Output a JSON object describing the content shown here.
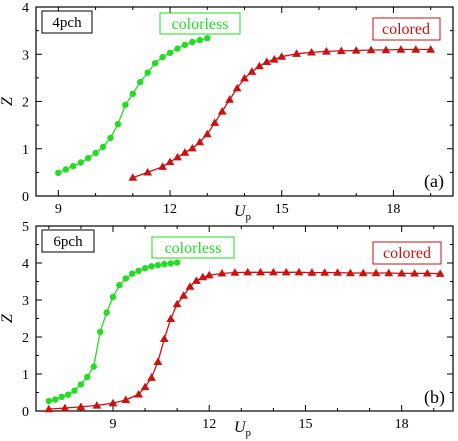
{
  "chart_data": [
    {
      "type": "line",
      "panel_tag": "(a)",
      "box_label": "4pch",
      "xlabel_main": "U",
      "xlabel_sub": "p",
      "ylabel": "Z",
      "xlim": [
        8.4,
        19.6
      ],
      "ylim": [
        0,
        4
      ],
      "xticks": [
        9,
        12,
        15,
        18
      ],
      "yticks": [
        0,
        1,
        2,
        3,
        4
      ],
      "grid": false,
      "series": [
        {
          "name": "colorless",
          "color": "#22dd22",
          "marker": "circle",
          "x": [
            9.0,
            9.2,
            9.4,
            9.6,
            9.8,
            10.0,
            10.2,
            10.4,
            10.6,
            10.8,
            11.0,
            11.2,
            11.4,
            11.6,
            11.8,
            12.0,
            12.2,
            12.4,
            12.6,
            12.8,
            13.0
          ],
          "y": [
            0.49,
            0.56,
            0.63,
            0.71,
            0.8,
            0.91,
            1.04,
            1.23,
            1.52,
            1.93,
            2.16,
            2.41,
            2.61,
            2.81,
            2.94,
            3.03,
            3.12,
            3.2,
            3.26,
            3.3,
            3.34
          ]
        },
        {
          "name": "colored",
          "color": "#cc1111",
          "marker": "triangle",
          "x": [
            11.0,
            11.4,
            11.8,
            12.0,
            12.2,
            12.4,
            12.6,
            12.8,
            13.0,
            13.2,
            13.4,
            13.6,
            13.8,
            14.0,
            14.2,
            14.4,
            14.6,
            14.8,
            15.0,
            15.4,
            15.8,
            16.2,
            16.6,
            17.0,
            17.4,
            17.8,
            18.2,
            18.6,
            19.0
          ],
          "y": [
            0.39,
            0.5,
            0.62,
            0.72,
            0.82,
            0.92,
            1.01,
            1.14,
            1.31,
            1.55,
            1.79,
            2.04,
            2.28,
            2.49,
            2.63,
            2.75,
            2.84,
            2.89,
            2.95,
            3.01,
            3.04,
            3.06,
            3.07,
            3.08,
            3.09,
            3.09,
            3.1,
            3.1,
            3.1
          ]
        }
      ]
    },
    {
      "type": "line",
      "panel_tag": "(b)",
      "box_label": "6pch",
      "xlabel_main": "U",
      "xlabel_sub": "p",
      "ylabel": "Z",
      "xlim": [
        6.6,
        19.6
      ],
      "ylim": [
        0,
        5
      ],
      "xticks": [
        9,
        12,
        15,
        18
      ],
      "yticks": [
        0,
        1,
        2,
        3,
        4,
        5
      ],
      "grid": false,
      "series": [
        {
          "name": "colorless",
          "color": "#22dd22",
          "marker": "circle",
          "x": [
            7.0,
            7.2,
            7.4,
            7.6,
            7.8,
            8.0,
            8.2,
            8.4,
            8.6,
            8.8,
            9.0,
            9.2,
            9.4,
            9.6,
            9.8,
            10.0,
            10.2,
            10.4,
            10.6,
            10.8,
            11.0
          ],
          "y": [
            0.27,
            0.31,
            0.38,
            0.44,
            0.55,
            0.72,
            0.92,
            1.2,
            2.14,
            2.66,
            3.08,
            3.4,
            3.58,
            3.71,
            3.79,
            3.86,
            3.91,
            3.94,
            3.97,
            3.99,
            4.01
          ]
        },
        {
          "name": "colored",
          "color": "#cc1111",
          "marker": "triangle",
          "x": [
            7.0,
            7.5,
            8.0,
            8.5,
            9.0,
            9.4,
            9.8,
            10.0,
            10.2,
            10.4,
            10.6,
            10.8,
            11.0,
            11.2,
            11.4,
            11.6,
            11.8,
            12.0,
            12.4,
            12.8,
            13.2,
            13.6,
            14.0,
            14.4,
            14.8,
            15.2,
            15.6,
            16.0,
            16.4,
            16.8,
            17.2,
            17.6,
            18.0,
            18.4,
            18.8,
            19.2
          ],
          "y": [
            0.05,
            0.08,
            0.11,
            0.15,
            0.21,
            0.3,
            0.45,
            0.65,
            0.9,
            1.33,
            1.95,
            2.49,
            2.89,
            3.12,
            3.36,
            3.52,
            3.62,
            3.67,
            3.72,
            3.74,
            3.75,
            3.75,
            3.75,
            3.75,
            3.75,
            3.74,
            3.74,
            3.74,
            3.73,
            3.73,
            3.73,
            3.73,
            3.72,
            3.72,
            3.72,
            3.71
          ]
        }
      ]
    }
  ]
}
